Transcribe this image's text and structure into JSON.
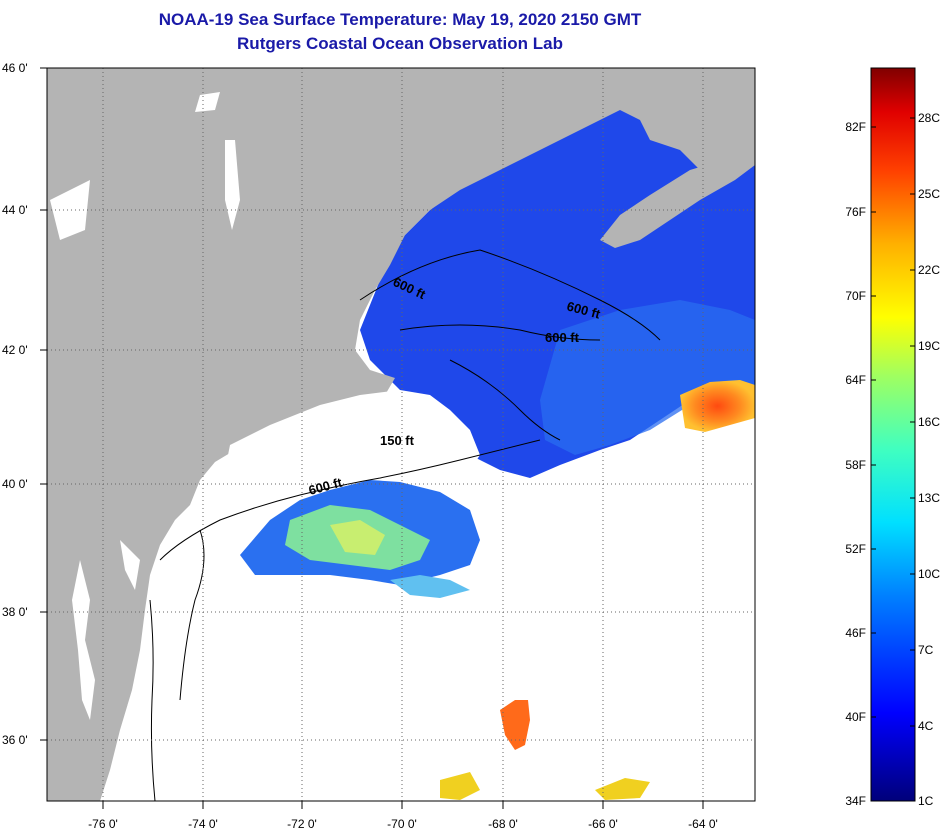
{
  "title": {
    "line1": "NOAA-19 Sea Surface Temperature:  May 19, 2020 2150 GMT",
    "line2": "Rutgers Coastal Ocean Observation Lab"
  },
  "map": {
    "lat_labels": [
      "46 0'",
      "44 0'",
      "42 0'",
      "40 0'",
      "38 0'",
      "36 0'"
    ],
    "lon_labels": [
      "-76 0'",
      "-74 0'",
      "-72 0'",
      "-70 0'",
      "-68 0'",
      "-66 0'",
      "-64 0'"
    ],
    "contour_labels": [
      "600 ft",
      "600 ft",
      "600 ft",
      "150 ft",
      "600 ft"
    ],
    "colors": {
      "land": "#b4b4b4",
      "cloud": "#ffffff",
      "cold_water": "#1a46e8",
      "warm_water": "#ff6a1a"
    }
  },
  "colorbar": {
    "f_labels": [
      "82F",
      "76F",
      "70F",
      "64F",
      "58F",
      "52F",
      "46F",
      "40F",
      "34F"
    ],
    "c_labels": [
      "28C",
      "25C",
      "22C",
      "19C",
      "16C",
      "13C",
      "10C",
      "7C",
      "4C",
      "1C"
    ]
  }
}
